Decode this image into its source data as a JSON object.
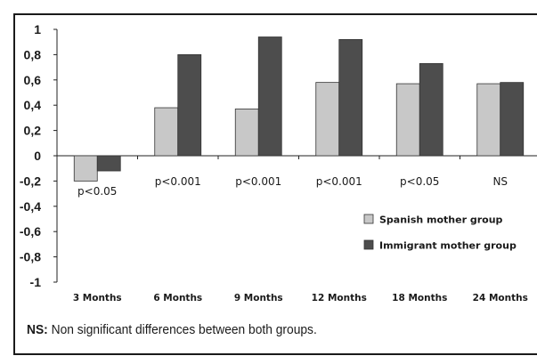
{
  "chart_data": {
    "type": "bar",
    "categories": [
      "3 Months",
      "6 Months",
      "9 Months",
      "12 Months",
      "18 Months",
      "24 Months"
    ],
    "series": [
      {
        "name": "Spanish mother group",
        "values": [
          -0.2,
          0.38,
          0.37,
          0.58,
          0.57,
          0.57
        ],
        "color": "#c8c8c8"
      },
      {
        "name": "Immigrant mother group",
        "values": [
          -0.12,
          0.8,
          0.94,
          0.92,
          0.73,
          0.58
        ],
        "color": "#4d4d4d"
      }
    ],
    "annotations": [
      "p<0.05",
      "p<0.001",
      "p<0.001",
      "p<0.001",
      "p<0.05",
      "NS"
    ],
    "ylim": [
      -1,
      1
    ],
    "yticks": [
      "1",
      "0,8",
      "0,6",
      "0,4",
      "0,2",
      "0",
      "-0,2",
      "-0,4",
      "-0,6",
      "-0,8",
      "-1"
    ],
    "grid": false,
    "legend_position": "lower-right"
  },
  "note": {
    "label": "NS:",
    "text": " Non significant differences between both groups."
  }
}
